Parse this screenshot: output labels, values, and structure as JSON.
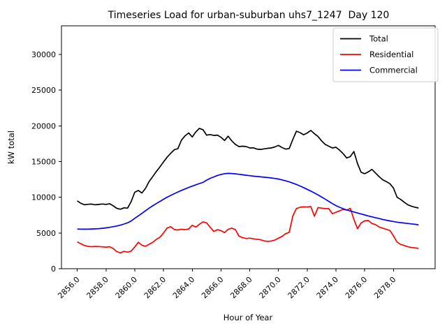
{
  "figure": {
    "background": "#ffffff"
  },
  "chart_data": {
    "type": "line",
    "title": "Timeseries Load for urban-suburban uhs7_1247  Day 120",
    "xlabel": "Hour of Year",
    "ylabel": "kW total",
    "grid": false,
    "legend_position": "upper right",
    "xlim": [
      2854.9,
      2880.9
    ],
    "ylim": [
      0,
      34000
    ],
    "x_start": 2856.0,
    "x_step": 0.25,
    "xticks": [
      {
        "value": 2856,
        "label": "2856.0"
      },
      {
        "value": 2858,
        "label": "2858.0"
      },
      {
        "value": 2860,
        "label": "2860.0"
      },
      {
        "value": 2862,
        "label": "2862.0"
      },
      {
        "value": 2864,
        "label": "2864.0"
      },
      {
        "value": 2866,
        "label": "2866.0"
      },
      {
        "value": 2868,
        "label": "2868.0"
      },
      {
        "value": 2870,
        "label": "2870.0"
      },
      {
        "value": 2872,
        "label": "2872.0"
      },
      {
        "value": 2874,
        "label": "2874.0"
      },
      {
        "value": 2876,
        "label": "2876.0"
      },
      {
        "value": 2878,
        "label": "2878.0"
      }
    ],
    "yticks": [
      {
        "value": 0,
        "label": "0"
      },
      {
        "value": 5000,
        "label": "5000"
      },
      {
        "value": 10000,
        "label": "10000"
      },
      {
        "value": 15000,
        "label": "15000"
      },
      {
        "value": 20000,
        "label": "20000"
      },
      {
        "value": 25000,
        "label": "25000"
      },
      {
        "value": 30000,
        "label": "30000"
      }
    ],
    "series": [
      {
        "name": "Total",
        "color": "#000000",
        "values": [
          9500,
          9150,
          8950,
          9020,
          9050,
          8950,
          9000,
          9060,
          9000,
          9100,
          8800,
          8450,
          8320,
          8520,
          8480,
          9400,
          10700,
          10950,
          10600,
          11250,
          12200,
          12900,
          13600,
          14250,
          14950,
          15600,
          16150,
          16650,
          16800,
          18000,
          18600,
          19000,
          18450,
          19150,
          19650,
          19450,
          18700,
          18780,
          18650,
          18700,
          18400,
          17950,
          18550,
          17900,
          17400,
          17100,
          17150,
          17100,
          16900,
          16920,
          16750,
          16700,
          16780,
          16850,
          16900,
          17050,
          17250,
          16950,
          16750,
          16820,
          18100,
          19250,
          19050,
          18750,
          19000,
          19350,
          18900,
          18500,
          17900,
          17400,
          17150,
          16900,
          17000,
          16600,
          16100,
          15500,
          15700,
          16400,
          14700,
          13500,
          13300,
          13550,
          13900,
          13400,
          12900,
          12450,
          12200,
          11900,
          11300,
          10000,
          9700,
          9300,
          8950,
          8750,
          8600,
          8500
        ]
      },
      {
        "name": "Residential",
        "color": "#ff0000",
        "values": [
          3750,
          3500,
          3250,
          3120,
          3080,
          3120,
          3100,
          3060,
          3020,
          3080,
          2820,
          2380,
          2220,
          2420,
          2320,
          2460,
          3050,
          3700,
          3280,
          3150,
          3420,
          3700,
          4100,
          4420,
          5000,
          5700,
          5880,
          5480,
          5420,
          5520,
          5460,
          5560,
          6080,
          5820,
          6220,
          6560,
          6420,
          5780,
          5220,
          5460,
          5320,
          5060,
          5520,
          5680,
          5480,
          4560,
          4360,
          4220,
          4280,
          4180,
          4120,
          4050,
          3900,
          3820,
          3880,
          4020,
          4280,
          4520,
          4900,
          5100,
          7400,
          8420,
          8600,
          8660,
          8640,
          8700,
          7350,
          8560,
          8480,
          8400,
          8420,
          7700,
          7900,
          8100,
          8300,
          8200,
          8450,
          6900,
          5600,
          6400,
          6700,
          6750,
          6330,
          6170,
          5840,
          5680,
          5520,
          5350,
          4600,
          3730,
          3400,
          3240,
          3070,
          2970,
          2910,
          2840
        ]
      },
      {
        "name": "Commercial",
        "color": "#0000ff",
        "values": [
          5550,
          5540,
          5530,
          5540,
          5560,
          5580,
          5610,
          5660,
          5720,
          5790,
          5880,
          5980,
          6100,
          6250,
          6430,
          6680,
          7050,
          7400,
          7750,
          8120,
          8480,
          8800,
          9120,
          9420,
          9720,
          10000,
          10260,
          10500,
          10740,
          10960,
          11170,
          11370,
          11560,
          11740,
          11920,
          12090,
          12400,
          12650,
          12850,
          13050,
          13200,
          13300,
          13350,
          13330,
          13280,
          13220,
          13150,
          13080,
          13020,
          12960,
          12910,
          12860,
          12810,
          12760,
          12700,
          12630,
          12550,
          12430,
          12300,
          12150,
          11980,
          11790,
          11580,
          11350,
          11110,
          10860,
          10600,
          10330,
          10040,
          9740,
          9430,
          9120,
          8830,
          8600,
          8400,
          8230,
          8080,
          7940,
          7800,
          7660,
          7520,
          7390,
          7260,
          7140,
          7020,
          6900,
          6790,
          6690,
          6600,
          6520,
          6450,
          6390,
          6330,
          6270,
          6210,
          6150
        ]
      }
    ]
  }
}
